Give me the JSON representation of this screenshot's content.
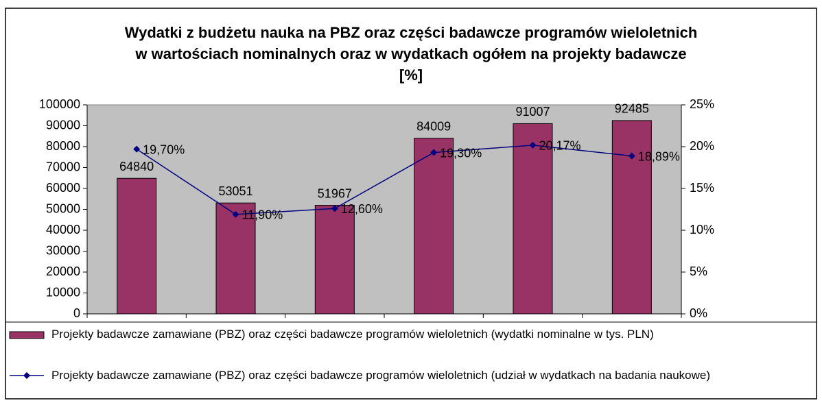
{
  "chart_data": {
    "type": "bar_line",
    "title": "Wydatki z budżetu nauka na PBZ oraz części badawcze programów wieloletnich w wartościach nominalnych oraz w wydatkach ogółem na projekty badawcze [%]",
    "categories": [
      null,
      null,
      null,
      null,
      null,
      null
    ],
    "series": [
      {
        "name": "Projekty badawcze zamawiane (PBZ) oraz części badawcze programów wieloletnich (wydatki nominalne w tys. PLN)",
        "type": "bar",
        "color": "#993366",
        "values": [
          64840,
          53051,
          51967,
          84009,
          91007,
          92485
        ]
      },
      {
        "name": "Projekty badawcze zamawiane (PBZ) oraz części badawcze programów wieloletnich (udział w wydatkach na badania naukowe)",
        "type": "line",
        "axis": "y2",
        "color": "#000080",
        "values": [
          19.7,
          11.9,
          12.6,
          19.3,
          20.17,
          18.89
        ],
        "value_labels": [
          "19,70%",
          "11,90%",
          "12,60%",
          "19,30%",
          "20,17%",
          "18,89%"
        ]
      }
    ],
    "ylim": [
      0,
      100000
    ],
    "yticks": [
      0,
      10000,
      20000,
      30000,
      40000,
      50000,
      60000,
      70000,
      80000,
      90000,
      100000
    ],
    "y2lim": [
      0,
      25
    ],
    "y2ticks": [
      {
        "value": 0,
        "label": "0%"
      },
      {
        "value": 5,
        "label": "5%"
      },
      {
        "value": 10,
        "label": "10%"
      },
      {
        "value": 15,
        "label": "15%"
      },
      {
        "value": 20,
        "label": "20%"
      },
      {
        "value": 25,
        "label": "25%"
      }
    ],
    "plot_background": "#c0c0c0",
    "legend": "bottom"
  }
}
